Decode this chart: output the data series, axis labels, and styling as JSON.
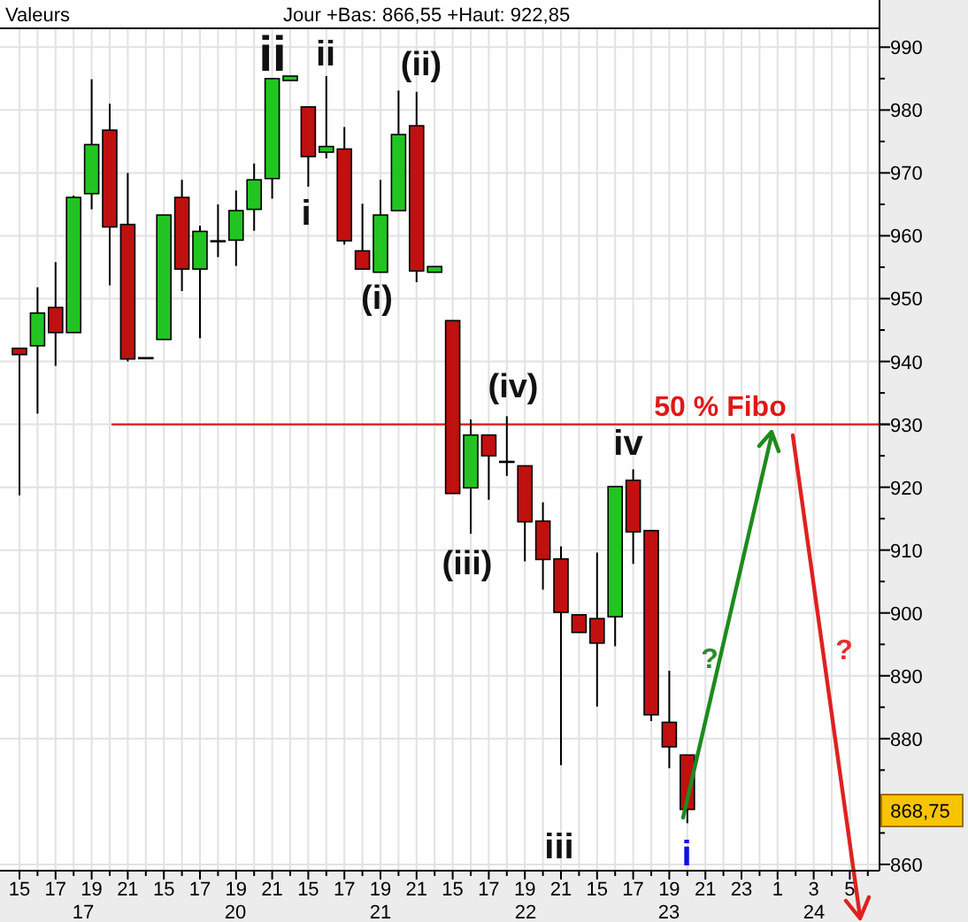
{
  "chart_data": {
    "type": "candlestick",
    "title": "Valeurs",
    "subtitle": "Jour +Bas: 866,55 +Haut: 922,85",
    "categories": [
      "15",
      null,
      "17",
      null,
      "19",
      null,
      "21",
      null,
      "15",
      null,
      "17",
      null,
      "19",
      null,
      "21",
      null,
      "15",
      null,
      "17",
      null,
      "19",
      null,
      "21",
      null,
      "15",
      null,
      "17",
      null,
      "19",
      null,
      "21",
      null,
      "15",
      null,
      "17",
      null,
      "19",
      null,
      "21",
      null,
      "23",
      null,
      "1",
      null,
      "3",
      null,
      "5",
      null
    ],
    "ohlc": [
      [
        942.1,
        942.1,
        918.7,
        941.1
      ],
      [
        942.5,
        951.8,
        931.7,
        947.7
      ],
      [
        948.6,
        955.8,
        939.3,
        944.6
      ],
      [
        944.6,
        966.4,
        944.6,
        966.1
      ],
      [
        966.7,
        984.9,
        964.2,
        974.5
      ],
      [
        976.8,
        981.0,
        952.1,
        961.4
      ],
      [
        961.8,
        970.0,
        940.0,
        940.4
      ],
      [
        940.6,
        940.6,
        940.6,
        940.6
      ],
      [
        943.5,
        963.3,
        943.5,
        963.3
      ],
      [
        966.1,
        968.9,
        951.2,
        954.7
      ],
      [
        954.7,
        961.6,
        943.7,
        960.7
      ],
      [
        959.2,
        965.0,
        956.6,
        959.2
      ],
      [
        959.3,
        967.2,
        955.2,
        964.0
      ],
      [
        964.2,
        971.5,
        960.8,
        968.9
      ],
      [
        969.1,
        985.1,
        965.9,
        985.0
      ],
      [
        984.7,
        985.4,
        984.7,
        985.4
      ],
      [
        980.5,
        980.5,
        967.8,
        972.6
      ],
      [
        973.3,
        985.4,
        972.3,
        974.2
      ],
      [
        973.8,
        977.3,
        958.6,
        959.2
      ],
      [
        957.6,
        965.1,
        954.7,
        954.7
      ],
      [
        954.2,
        968.9,
        954.2,
        963.3
      ],
      [
        964.0,
        983.1,
        964.0,
        976.1
      ],
      [
        977.5,
        982.9,
        952.6,
        954.4
      ],
      [
        954.2,
        955.1,
        954.2,
        955.1
      ],
      [
        946.5,
        946.5,
        919.0,
        919.0
      ],
      [
        919.9,
        930.8,
        912.6,
        928.3
      ],
      [
        928.3,
        928.3,
        918.0,
        925.0
      ],
      [
        924.1,
        931.3,
        921.8,
        924.1
      ],
      [
        923.4,
        923.4,
        908.2,
        914.5
      ],
      [
        914.6,
        917.6,
        903.7,
        908.5
      ],
      [
        908.6,
        910.6,
        875.8,
        900.1
      ],
      [
        899.7,
        899.7,
        896.9,
        896.9
      ],
      [
        899.1,
        909.6,
        885.1,
        895.2
      ],
      [
        899.4,
        920.1,
        894.7,
        920.1
      ],
      [
        921.1,
        922.85,
        907.8,
        912.9
      ],
      [
        913.1,
        913.1,
        882.8,
        883.8
      ],
      [
        882.6,
        890.8,
        875.3,
        878.7
      ],
      [
        877.4,
        877.4,
        866.55,
        868.75
      ],
      null,
      null,
      null,
      null,
      null,
      null,
      null,
      null,
      null,
      null
    ],
    "colors": [
      "#c01010",
      "#22c422",
      "#c01010",
      "#22c422",
      "#22c422",
      "#c01010",
      "#c01010",
      "#c01010",
      "#22c422",
      "#c01010",
      "#22c422",
      "#22c422",
      "#22c422",
      "#22c422",
      "#22c422",
      "#22c422",
      "#c01010",
      "#22c422",
      "#c01010",
      "#c01010",
      "#22c422",
      "#22c422",
      "#c01010",
      "#22c422",
      "#c01010",
      "#22c422",
      "#c01010",
      "#c01010",
      "#c01010",
      "#c01010",
      "#c01010",
      "#c01010",
      "#c01010",
      "#22c422",
      "#c01010",
      "#c01010",
      "#c01010",
      "#c01010",
      null,
      null,
      null,
      null,
      null,
      null,
      null,
      null,
      null,
      null
    ],
    "ylim": [
      859,
      993
    ],
    "yticks": [
      860,
      {
        "value": 865,
        "label": null
      },
      {
        "value": 870,
        "label": null
      },
      {
        "value": 875,
        "label": null
      },
      880,
      {
        "value": 885,
        "label": null
      },
      890,
      {
        "value": 895,
        "label": null
      },
      900,
      {
        "value": 905,
        "label": null
      },
      910,
      {
        "value": 915,
        "label": null
      },
      920,
      {
        "value": 925,
        "label": null
      },
      930,
      {
        "value": 935,
        "label": null
      },
      940,
      {
        "value": 945,
        "label": null
      },
      950,
      {
        "value": 955,
        "label": null
      },
      960,
      {
        "value": 965,
        "label": null
      },
      970,
      {
        "value": 975,
        "label": null
      },
      980,
      {
        "value": 985,
        "label": null
      },
      990
    ],
    "grid": true,
    "ref_lines": [
      {
        "axis": "y",
        "value": 930,
        "label": "50 % Fibo",
        "color": "#e01818"
      }
    ],
    "annotations": [
      "ii",
      "ii",
      "i",
      "(ii)",
      "(i)",
      "(iv)",
      "(iii)",
      "iv",
      "iii",
      "i",
      "?",
      "?",
      "868,75",
      "17",
      "20",
      "21",
      "22",
      "23",
      "24"
    ]
  }
}
